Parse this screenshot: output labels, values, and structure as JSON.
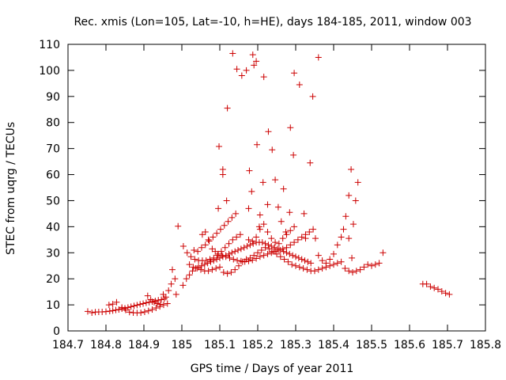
{
  "chart_data": {
    "type": "scatter",
    "title": "Rec. xmis (Lon=105, Lat=-10, h=HE), days 184-185, 2011, window 003",
    "xlabel": "GPS time / Days of year 2011",
    "ylabel": "STEC from uqrg / TECUs",
    "xlim": [
      184.7,
      185.8
    ],
    "ylim": [
      0,
      110
    ],
    "xticks": [
      "184.7",
      "184.8",
      "184.9",
      "185",
      "185.1",
      "185.2",
      "185.3",
      "185.4",
      "185.5",
      "185.6",
      "185.7",
      "185.8"
    ],
    "yticks": [
      "0",
      "10",
      "20",
      "30",
      "40",
      "50",
      "60",
      "70",
      "80",
      "90",
      "100",
      "110"
    ],
    "grid": false,
    "marker": "+",
    "color": "#cc0000",
    "points": [
      [
        184.752,
        7.5
      ],
      [
        184.763,
        7.0
      ],
      [
        184.772,
        7.2
      ],
      [
        184.781,
        7.3
      ],
      [
        184.79,
        7.3
      ],
      [
        184.8,
        7.4
      ],
      [
        184.81,
        7.6
      ],
      [
        184.818,
        7.8
      ],
      [
        184.826,
        8.0
      ],
      [
        184.834,
        8.2
      ],
      [
        184.842,
        8.5
      ],
      [
        184.85,
        8.7
      ],
      [
        184.858,
        9.0
      ],
      [
        184.866,
        9.3
      ],
      [
        184.874,
        9.6
      ],
      [
        184.882,
        9.9
      ],
      [
        184.89,
        10.2
      ],
      [
        184.898,
        10.5
      ],
      [
        184.906,
        10.8
      ],
      [
        184.914,
        11.0
      ],
      [
        184.922,
        11.2
      ],
      [
        184.93,
        11.5
      ],
      [
        184.938,
        11.8
      ],
      [
        184.946,
        12.0
      ],
      [
        184.954,
        12.4
      ],
      [
        184.808,
        10.0
      ],
      [
        184.818,
        10.3
      ],
      [
        184.828,
        11.0
      ],
      [
        184.842,
        9.0
      ],
      [
        184.852,
        8.0
      ],
      [
        184.862,
        7.2
      ],
      [
        184.872,
        7.0
      ],
      [
        184.882,
        6.9
      ],
      [
        184.892,
        7.0
      ],
      [
        184.902,
        7.3
      ],
      [
        184.912,
        7.7
      ],
      [
        184.922,
        8.2
      ],
      [
        184.932,
        8.8
      ],
      [
        184.942,
        9.4
      ],
      [
        184.952,
        10.0
      ],
      [
        184.962,
        10.5
      ],
      [
        184.91,
        13.5
      ],
      [
        184.918,
        12.0
      ],
      [
        184.927,
        11.0
      ],
      [
        184.935,
        10.5
      ],
      [
        184.943,
        10.2
      ],
      [
        184.951,
        14.0
      ],
      [
        184.958,
        13.0
      ],
      [
        184.965,
        15.5
      ],
      [
        184.972,
        18.0
      ],
      [
        184.975,
        23.5
      ],
      [
        184.982,
        20.0
      ],
      [
        184.985,
        14.0
      ],
      [
        184.99,
        40.2
      ],
      [
        185.003,
        17.5
      ],
      [
        185.012,
        20.0
      ],
      [
        185.02,
        21.5
      ],
      [
        185.028,
        23.0
      ],
      [
        185.036,
        24.0
      ],
      [
        185.044,
        24.5
      ],
      [
        185.052,
        25.0
      ],
      [
        185.06,
        25.5
      ],
      [
        185.068,
        26.0
      ],
      [
        185.076,
        26.5
      ],
      [
        185.084,
        27.0
      ],
      [
        185.092,
        27.5
      ],
      [
        185.1,
        28.0
      ],
      [
        185.108,
        28.5
      ],
      [
        185.116,
        29.0
      ],
      [
        185.124,
        29.5
      ],
      [
        185.132,
        30.0
      ],
      [
        185.14,
        30.5
      ],
      [
        185.148,
        31.0
      ],
      [
        185.156,
        31.5
      ],
      [
        185.164,
        32.0
      ],
      [
        185.172,
        32.5
      ],
      [
        185.18,
        33.0
      ],
      [
        185.188,
        33.5
      ],
      [
        185.196,
        34.0
      ],
      [
        185.204,
        34.0
      ],
      [
        185.212,
        34.0
      ],
      [
        185.22,
        33.5
      ],
      [
        185.228,
        33.0
      ],
      [
        185.236,
        32.5
      ],
      [
        185.244,
        32.0
      ],
      [
        185.252,
        31.5
      ],
      [
        185.26,
        31.0
      ],
      [
        185.268,
        30.5
      ],
      [
        185.276,
        30.0
      ],
      [
        185.284,
        29.5
      ],
      [
        185.292,
        29.0
      ],
      [
        185.3,
        28.5
      ],
      [
        185.308,
        28.0
      ],
      [
        185.316,
        27.5
      ],
      [
        185.324,
        27.0
      ],
      [
        185.332,
        26.5
      ],
      [
        185.34,
        26.0
      ],
      [
        185.004,
        32.5
      ],
      [
        185.014,
        30.0
      ],
      [
        185.024,
        28.5
      ],
      [
        185.034,
        27.5
      ],
      [
        185.044,
        27.0
      ],
      [
        185.054,
        27.0
      ],
      [
        185.064,
        27.0
      ],
      [
        185.074,
        27.5
      ],
      [
        185.084,
        28.0
      ],
      [
        185.094,
        29.0
      ],
      [
        185.104,
        30.5
      ],
      [
        185.114,
        32.0
      ],
      [
        185.124,
        33.5
      ],
      [
        185.134,
        35.0
      ],
      [
        185.144,
        36.0
      ],
      [
        185.154,
        37.0
      ],
      [
        185.02,
        25.5
      ],
      [
        185.03,
        24.5
      ],
      [
        185.04,
        24.0
      ],
      [
        185.05,
        23.5
      ],
      [
        185.06,
        23.0
      ],
      [
        185.07,
        23.0
      ],
      [
        185.08,
        23.5
      ],
      [
        185.09,
        24.0
      ],
      [
        185.1,
        24.5
      ],
      [
        185.11,
        22.5
      ],
      [
        185.12,
        22.0
      ],
      [
        185.13,
        22.5
      ],
      [
        185.14,
        23.5
      ],
      [
        185.15,
        25.0
      ],
      [
        185.16,
        26.5
      ],
      [
        185.17,
        27.5
      ],
      [
        185.18,
        28.0
      ],
      [
        185.19,
        29.0
      ],
      [
        185.2,
        30.0
      ],
      [
        185.21,
        31.0
      ],
      [
        185.22,
        32.0
      ],
      [
        185.23,
        31.5
      ],
      [
        185.24,
        30.5
      ],
      [
        185.25,
        29.5
      ],
      [
        185.26,
        28.5
      ],
      [
        185.27,
        27.5
      ],
      [
        185.28,
        26.5
      ],
      [
        185.29,
        25.5
      ],
      [
        185.3,
        25.0
      ],
      [
        185.31,
        24.5
      ],
      [
        185.32,
        24.0
      ],
      [
        185.33,
        23.5
      ],
      [
        185.34,
        23.0
      ],
      [
        185.35,
        23.0
      ],
      [
        185.36,
        23.5
      ],
      [
        185.37,
        24.0
      ],
      [
        185.38,
        24.5
      ],
      [
        185.39,
        25.0
      ],
      [
        185.4,
        25.5
      ],
      [
        185.41,
        26.0
      ],
      [
        185.42,
        26.5
      ],
      [
        185.032,
        31.0
      ],
      [
        185.042,
        30.5
      ],
      [
        185.052,
        32.0
      ],
      [
        185.062,
        33.0
      ],
      [
        185.072,
        34.5
      ],
      [
        185.082,
        36.0
      ],
      [
        185.092,
        37.5
      ],
      [
        185.102,
        39.0
      ],
      [
        185.112,
        40.5
      ],
      [
        185.122,
        42.0
      ],
      [
        185.132,
        43.5
      ],
      [
        185.142,
        45.0
      ],
      [
        185.054,
        37.0
      ],
      [
        185.062,
        38.0
      ],
      [
        185.07,
        35.0
      ],
      [
        185.08,
        31.5
      ],
      [
        185.088,
        30.5
      ],
      [
        185.096,
        29.5
      ],
      [
        185.106,
        29.0
      ],
      [
        185.116,
        28.5
      ],
      [
        185.126,
        28.0
      ],
      [
        185.136,
        27.5
      ],
      [
        185.146,
        27.0
      ],
      [
        185.156,
        26.8
      ],
      [
        185.166,
        26.6
      ],
      [
        185.176,
        26.8
      ],
      [
        185.186,
        27.2
      ],
      [
        185.196,
        27.8
      ],
      [
        185.206,
        28.5
      ],
      [
        185.216,
        29.0
      ],
      [
        185.226,
        29.5
      ],
      [
        185.236,
        30.0
      ],
      [
        185.246,
        30.5
      ],
      [
        185.256,
        31.0
      ],
      [
        185.266,
        31.5
      ],
      [
        185.276,
        32.0
      ],
      [
        185.286,
        33.0
      ],
      [
        185.296,
        34.0
      ],
      [
        185.306,
        35.0
      ],
      [
        185.316,
        36.0
      ],
      [
        185.326,
        37.0
      ],
      [
        185.336,
        38.0
      ],
      [
        185.346,
        39.0
      ],
      [
        185.096,
        47.0
      ],
      [
        185.098,
        70.8
      ],
      [
        185.108,
        62.0
      ],
      [
        185.108,
        60.0
      ],
      [
        185.118,
        50.0
      ],
      [
        185.12,
        85.5
      ],
      [
        185.134,
        106.5
      ],
      [
        185.145,
        100.5
      ],
      [
        185.158,
        98.0
      ],
      [
        185.17,
        100.0
      ],
      [
        185.176,
        47.0
      ],
      [
        185.178,
        61.5
      ],
      [
        185.184,
        53.5
      ],
      [
        185.187,
        106.0
      ],
      [
        185.19,
        102.0
      ],
      [
        185.196,
        103.5
      ],
      [
        185.198,
        71.5
      ],
      [
        185.204,
        40.0
      ],
      [
        185.206,
        44.5
      ],
      [
        185.214,
        57.0
      ],
      [
        185.216,
        97.5
      ],
      [
        185.226,
        48.5
      ],
      [
        185.228,
        76.5
      ],
      [
        185.238,
        69.5
      ],
      [
        185.246,
        58.0
      ],
      [
        185.254,
        47.5
      ],
      [
        185.262,
        42.0
      ],
      [
        185.268,
        54.5
      ],
      [
        185.274,
        38.0
      ],
      [
        185.284,
        45.5
      ],
      [
        185.286,
        78.0
      ],
      [
        185.294,
        67.5
      ],
      [
        185.296,
        99.0
      ],
      [
        185.31,
        94.5
      ],
      [
        185.322,
        45.0
      ],
      [
        185.326,
        35.5
      ],
      [
        185.338,
        64.5
      ],
      [
        185.345,
        90.0
      ],
      [
        185.352,
        35.5
      ],
      [
        185.36,
        105.0
      ],
      [
        185.176,
        35.0
      ],
      [
        185.186,
        34.5
      ],
      [
        185.196,
        36.0
      ],
      [
        185.206,
        39.0
      ],
      [
        185.216,
        41.0
      ],
      [
        185.226,
        38.0
      ],
      [
        185.236,
        35.5
      ],
      [
        185.246,
        34.0
      ],
      [
        185.256,
        33.5
      ],
      [
        185.266,
        35.5
      ],
      [
        185.276,
        37.0
      ],
      [
        185.286,
        38.5
      ],
      [
        185.296,
        40.0
      ],
      [
        185.36,
        29.0
      ],
      [
        185.37,
        27.0
      ],
      [
        185.38,
        26.0
      ],
      [
        185.39,
        27.5
      ],
      [
        185.4,
        29.5
      ],
      [
        185.41,
        33.0
      ],
      [
        185.42,
        36.0
      ],
      [
        185.426,
        39.0
      ],
      [
        185.432,
        44.0
      ],
      [
        185.44,
        52.0
      ],
      [
        185.446,
        62.0
      ],
      [
        185.452,
        41.0
      ],
      [
        185.458,
        50.0
      ],
      [
        185.464,
        57.0
      ],
      [
        185.44,
        35.5
      ],
      [
        185.448,
        28.0
      ],
      [
        185.43,
        24.0
      ],
      [
        185.44,
        23.0
      ],
      [
        185.45,
        22.5
      ],
      [
        185.46,
        23.0
      ],
      [
        185.47,
        23.5
      ],
      [
        185.48,
        24.5
      ],
      [
        185.49,
        25.5
      ],
      [
        185.5,
        25.0
      ],
      [
        185.51,
        25.5
      ],
      [
        185.52,
        26.0
      ],
      [
        185.53,
        30.0
      ],
      [
        185.635,
        18.0
      ],
      [
        185.645,
        18.0
      ],
      [
        185.655,
        17.0
      ],
      [
        185.665,
        16.5
      ],
      [
        185.675,
        16.0
      ],
      [
        185.685,
        15.2
      ],
      [
        185.695,
        14.5
      ],
      [
        185.705,
        14.0
      ]
    ]
  }
}
